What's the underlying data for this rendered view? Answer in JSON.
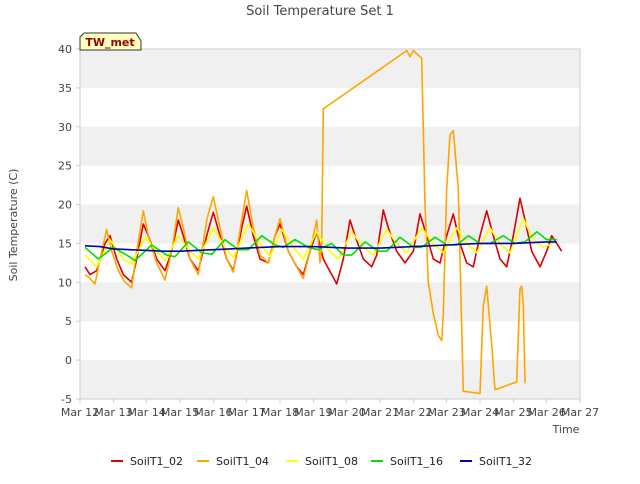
{
  "chart_data": {
    "type": "line",
    "title": "Soil Temperature Set 1",
    "xlabel": "Time",
    "ylabel": "Soil Temperature (C)",
    "badge": "TW_met",
    "xlim": [
      0,
      15
    ],
    "ylim": [
      -5,
      40
    ],
    "x_ticks": [
      {
        "x": 0,
        "label": "Mar 12"
      },
      {
        "x": 1,
        "label": "Mar 13"
      },
      {
        "x": 2,
        "label": "Mar 14"
      },
      {
        "x": 3,
        "label": "Mar 15"
      },
      {
        "x": 4,
        "label": "Mar 16"
      },
      {
        "x": 5,
        "label": "Mar 17"
      },
      {
        "x": 6,
        "label": "Mar 18"
      },
      {
        "x": 7,
        "label": "Mar 19"
      },
      {
        "x": 8,
        "label": "Mar 20"
      },
      {
        "x": 9,
        "label": "Mar 21"
      },
      {
        "x": 10,
        "label": "Mar 22"
      },
      {
        "x": 11,
        "label": "Mar 23"
      },
      {
        "x": 12,
        "label": "Mar 24"
      },
      {
        "x": 13,
        "label": "Mar 25"
      },
      {
        "x": 14,
        "label": "Mar 26"
      },
      {
        "x": 15,
        "label": "Mar 27"
      }
    ],
    "y_ticks": [
      -5,
      0,
      5,
      10,
      15,
      20,
      25,
      30,
      35,
      40
    ],
    "bands": [
      [
        -5,
        0
      ],
      [
        5,
        10
      ],
      [
        15,
        20
      ],
      [
        25,
        30
      ],
      [
        35,
        40
      ]
    ],
    "colors": {
      "band": "#f0f0f0",
      "axis": "#cccccc",
      "text": "#444444"
    },
    "legend_position": "bottom",
    "series": [
      {
        "name": "SoilT1_02",
        "color": "#dd0000",
        "points": [
          [
            0.15,
            12
          ],
          [
            0.3,
            11
          ],
          [
            0.5,
            11.5
          ],
          [
            0.75,
            15
          ],
          [
            0.9,
            16
          ],
          [
            1.1,
            13
          ],
          [
            1.3,
            11
          ],
          [
            1.55,
            10
          ],
          [
            1.7,
            13
          ],
          [
            1.9,
            17.5
          ],
          [
            2.05,
            16
          ],
          [
            2.3,
            13
          ],
          [
            2.55,
            11.5
          ],
          [
            2.75,
            14
          ],
          [
            2.95,
            18
          ],
          [
            3.1,
            16
          ],
          [
            3.3,
            13
          ],
          [
            3.55,
            11.5
          ],
          [
            3.8,
            16
          ],
          [
            4.0,
            19
          ],
          [
            4.2,
            16
          ],
          [
            4.4,
            13
          ],
          [
            4.6,
            11.5
          ],
          [
            4.85,
            17
          ],
          [
            5.0,
            19.8
          ],
          [
            5.2,
            16
          ],
          [
            5.4,
            13
          ],
          [
            5.65,
            12.5
          ],
          [
            5.85,
            16
          ],
          [
            6.0,
            17.5
          ],
          [
            6.25,
            14
          ],
          [
            6.5,
            12
          ],
          [
            6.7,
            11
          ],
          [
            6.9,
            14
          ],
          [
            7.1,
            16.5
          ],
          [
            7.3,
            13
          ],
          [
            7.55,
            11
          ],
          [
            7.7,
            9.8
          ],
          [
            7.9,
            13
          ],
          [
            8.1,
            18
          ],
          [
            8.25,
            16
          ],
          [
            8.5,
            13
          ],
          [
            8.75,
            12
          ],
          [
            8.9,
            13.5
          ],
          [
            9.1,
            19.3
          ],
          [
            9.25,
            17
          ],
          [
            9.5,
            14
          ],
          [
            9.75,
            12.5
          ],
          [
            10.0,
            14
          ],
          [
            10.2,
            18.8
          ],
          [
            10.4,
            16
          ],
          [
            10.6,
            13
          ],
          [
            10.8,
            12.5
          ],
          [
            11.0,
            16
          ],
          [
            11.2,
            18.8
          ],
          [
            11.4,
            15
          ],
          [
            11.6,
            12.5
          ],
          [
            11.8,
            12
          ],
          [
            12.0,
            16
          ],
          [
            12.2,
            19.2
          ],
          [
            12.4,
            16
          ],
          [
            12.6,
            13
          ],
          [
            12.8,
            12
          ],
          [
            13.0,
            16
          ],
          [
            13.2,
            20.8
          ],
          [
            13.35,
            18
          ],
          [
            13.55,
            14
          ],
          [
            13.8,
            12
          ],
          [
            14.0,
            14
          ],
          [
            14.15,
            16
          ],
          [
            14.3,
            15
          ],
          [
            14.45,
            14
          ]
        ]
      },
      {
        "name": "SoilT1_04",
        "color": "#ffa500",
        "points": [
          [
            0.15,
            11
          ],
          [
            0.3,
            10.5
          ],
          [
            0.45,
            9.8
          ],
          [
            0.6,
            13
          ],
          [
            0.8,
            16.8
          ],
          [
            0.95,
            14
          ],
          [
            1.15,
            11.5
          ],
          [
            1.35,
            10
          ],
          [
            1.55,
            9.3
          ],
          [
            1.7,
            14
          ],
          [
            1.9,
            19.2
          ],
          [
            2.05,
            16
          ],
          [
            2.3,
            12.5
          ],
          [
            2.55,
            10.3
          ],
          [
            2.75,
            14
          ],
          [
            2.95,
            19.6
          ],
          [
            3.1,
            17
          ],
          [
            3.3,
            13
          ],
          [
            3.55,
            11
          ],
          [
            3.8,
            18
          ],
          [
            4.0,
            21
          ],
          [
            4.2,
            17
          ],
          [
            4.4,
            13
          ],
          [
            4.6,
            11.3
          ],
          [
            4.85,
            18
          ],
          [
            5.0,
            21.8
          ],
          [
            5.2,
            17
          ],
          [
            5.4,
            13.5
          ],
          [
            5.65,
            12.5
          ],
          [
            5.85,
            16
          ],
          [
            6.0,
            18.2
          ],
          [
            6.25,
            14
          ],
          [
            6.5,
            12
          ],
          [
            6.7,
            10.5
          ],
          [
            6.9,
            14
          ],
          [
            7.1,
            18
          ],
          [
            7.2,
            12.5
          ],
          [
            7.25,
            15
          ],
          [
            7.3,
            32.3
          ],
          [
            9.8,
            39.8
          ],
          [
            9.9,
            39
          ],
          [
            10.0,
            39.8
          ],
          [
            10.25,
            38.8
          ],
          [
            10.35,
            20
          ],
          [
            10.45,
            10
          ],
          [
            10.6,
            6
          ],
          [
            10.75,
            3.2
          ],
          [
            10.85,
            2.5
          ],
          [
            10.9,
            6
          ],
          [
            11.0,
            22
          ],
          [
            11.1,
            29
          ],
          [
            11.2,
            29.5
          ],
          [
            11.35,
            22
          ],
          [
            11.5,
            -4
          ],
          [
            12.0,
            -4.3
          ],
          [
            12.1,
            7
          ],
          [
            12.2,
            9.5
          ],
          [
            12.35,
            2
          ],
          [
            12.45,
            -3.8
          ],
          [
            13.1,
            -2.8
          ],
          [
            13.2,
            9.2
          ],
          [
            13.25,
            9.5
          ],
          [
            13.3,
            7
          ],
          [
            13.35,
            -3
          ]
        ]
      },
      {
        "name": "SoilT1_08",
        "color": "#ffff00",
        "points": [
          [
            0.15,
            13.5
          ],
          [
            0.5,
            12
          ],
          [
            0.9,
            15.5
          ],
          [
            1.3,
            13
          ],
          [
            1.55,
            12.3
          ],
          [
            1.95,
            15.8
          ],
          [
            2.3,
            14
          ],
          [
            2.55,
            12.8
          ],
          [
            2.95,
            16
          ],
          [
            3.3,
            14
          ],
          [
            3.55,
            13
          ],
          [
            4.0,
            17
          ],
          [
            4.35,
            14.5
          ],
          [
            4.6,
            13.2
          ],
          [
            5.05,
            17.5
          ],
          [
            5.4,
            15
          ],
          [
            5.7,
            13.3
          ],
          [
            6.05,
            16.8
          ],
          [
            6.4,
            14.5
          ],
          [
            6.7,
            13
          ],
          [
            7.1,
            16.5
          ],
          [
            7.45,
            14.2
          ],
          [
            7.75,
            13
          ],
          [
            8.15,
            16.5
          ],
          [
            8.5,
            14.5
          ],
          [
            8.8,
            13.5
          ],
          [
            9.2,
            16.8
          ],
          [
            9.5,
            15
          ],
          [
            9.8,
            13.8
          ],
          [
            10.25,
            17
          ],
          [
            10.6,
            15
          ],
          [
            10.9,
            13.8
          ],
          [
            11.3,
            17
          ],
          [
            11.6,
            15
          ],
          [
            11.9,
            13.8
          ],
          [
            12.3,
            17
          ],
          [
            12.6,
            15
          ],
          [
            12.9,
            13.8
          ],
          [
            13.3,
            18.2
          ],
          [
            13.6,
            15.5
          ],
          [
            13.9,
            14.5
          ],
          [
            14.2,
            15
          ]
        ]
      },
      {
        "name": "SoilT1_16",
        "color": "#00e000",
        "points": [
          [
            0.15,
            14.5
          ],
          [
            0.55,
            13
          ],
          [
            1.0,
            14.5
          ],
          [
            1.4,
            13.5
          ],
          [
            1.65,
            12.8
          ],
          [
            2.15,
            14.8
          ],
          [
            2.6,
            13.5
          ],
          [
            2.85,
            13.3
          ],
          [
            3.25,
            15.2
          ],
          [
            3.65,
            13.8
          ],
          [
            3.95,
            13.6
          ],
          [
            4.35,
            15.5
          ],
          [
            4.75,
            14.2
          ],
          [
            5.05,
            14.2
          ],
          [
            5.45,
            16
          ],
          [
            5.85,
            14.8
          ],
          [
            6.1,
            14.5
          ],
          [
            6.45,
            15.5
          ],
          [
            6.85,
            14.5
          ],
          [
            7.15,
            14.2
          ],
          [
            7.55,
            15
          ],
          [
            7.9,
            13.5
          ],
          [
            8.15,
            13.5
          ],
          [
            8.55,
            15.2
          ],
          [
            8.95,
            14
          ],
          [
            9.2,
            14
          ],
          [
            9.6,
            15.8
          ],
          [
            10.0,
            14.5
          ],
          [
            10.25,
            14.5
          ],
          [
            10.65,
            15.8
          ],
          [
            11.0,
            14.8
          ],
          [
            11.3,
            14.8
          ],
          [
            11.65,
            16
          ],
          [
            12.0,
            15
          ],
          [
            12.3,
            15
          ],
          [
            12.7,
            16
          ],
          [
            13.05,
            15
          ],
          [
            13.35,
            15.2
          ],
          [
            13.7,
            16.5
          ],
          [
            14.0,
            15.5
          ],
          [
            14.3,
            15.5
          ]
        ]
      },
      {
        "name": "SoilT1_32",
        "color": "#0000bb",
        "points": [
          [
            0.15,
            14.7
          ],
          [
            0.6,
            14.6
          ],
          [
            1.0,
            14.3
          ],
          [
            1.5,
            14.2
          ],
          [
            2.0,
            14.1
          ],
          [
            2.5,
            14
          ],
          [
            3.0,
            14
          ],
          [
            3.5,
            14.1
          ],
          [
            4.0,
            14.2
          ],
          [
            4.5,
            14.3
          ],
          [
            5.0,
            14.4
          ],
          [
            5.5,
            14.5
          ],
          [
            6.0,
            14.6
          ],
          [
            6.5,
            14.6
          ],
          [
            7.0,
            14.6
          ],
          [
            7.5,
            14.5
          ],
          [
            8.0,
            14.4
          ],
          [
            8.5,
            14.4
          ],
          [
            9.0,
            14.4
          ],
          [
            9.5,
            14.5
          ],
          [
            10.0,
            14.6
          ],
          [
            10.5,
            14.7
          ],
          [
            11.0,
            14.8
          ],
          [
            11.5,
            14.9
          ],
          [
            12.0,
            15
          ],
          [
            12.5,
            15
          ],
          [
            13.0,
            15
          ],
          [
            13.5,
            15.1
          ],
          [
            14.0,
            15.2
          ],
          [
            14.3,
            15.2
          ]
        ]
      }
    ]
  }
}
